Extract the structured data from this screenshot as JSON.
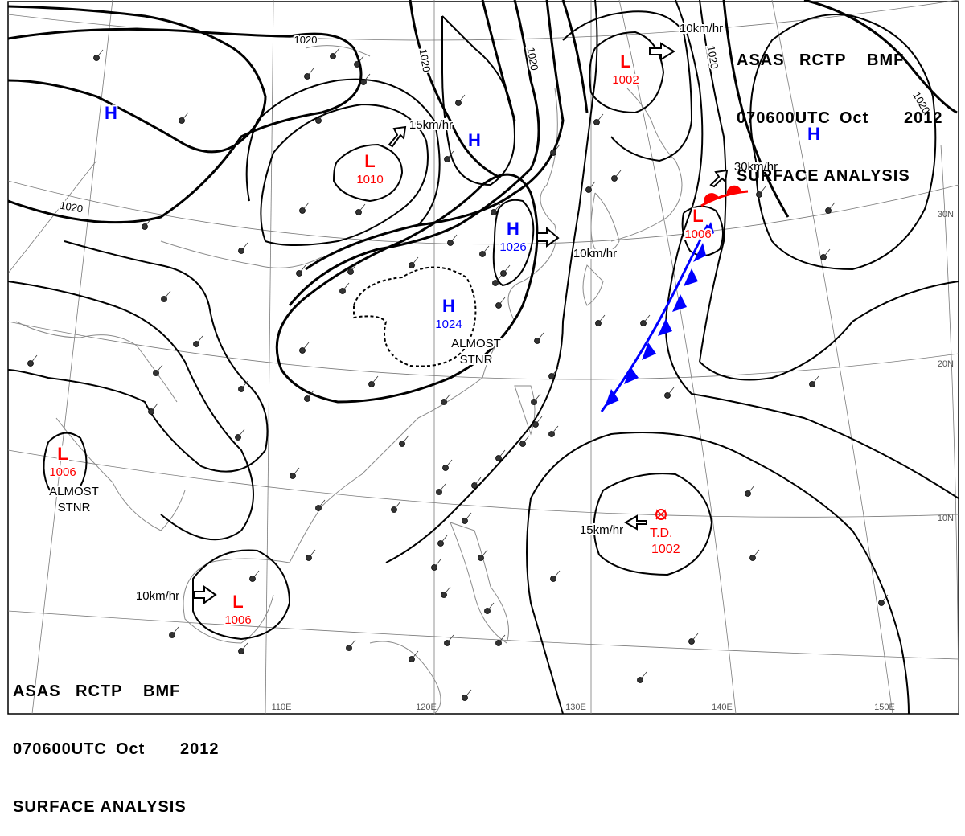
{
  "header": {
    "agency": "ASAS",
    "station": "RCTP",
    "code": "BMF",
    "time": "070600UTC",
    "month": "Oct",
    "year": "2012",
    "subtitle": "SURFACE ANALYSIS"
  },
  "pressure_centers": [
    {
      "type": "H",
      "value": ""
    },
    {
      "type": "H",
      "value": ""
    },
    {
      "type": "H",
      "value": ""
    },
    {
      "type": "H",
      "value": "1026"
    },
    {
      "type": "H",
      "value": "1024"
    },
    {
      "type": "L",
      "value": "1010"
    },
    {
      "type": "L",
      "value": "1002"
    },
    {
      "type": "L",
      "value": "1006"
    },
    {
      "type": "L",
      "value": "1006"
    },
    {
      "type": "L",
      "value": "1006"
    }
  ],
  "isobar_labels": [
    "1020",
    "1020",
    "1020",
    "1020",
    "1020",
    "1020"
  ],
  "motion_labels": [
    "15km/hr",
    "10km/hr",
    "10km/hr",
    "30km/hr",
    "15km/hr",
    "10km/hr"
  ],
  "annotations": [
    {
      "line1": "ALMOST",
      "line2": "STNR"
    },
    {
      "line1": "ALMOST",
      "line2": "STNR"
    }
  ],
  "tropical_depression": {
    "label": "T.D.",
    "value": "1002"
  },
  "longitudes": [
    "110E",
    "120E",
    "130E",
    "140E",
    "150E"
  ],
  "latitudes": [
    "30N",
    "20N",
    "10N"
  ],
  "colors": {
    "high": "#0000ff",
    "low": "#ff0000",
    "cold_front": "#0000ff",
    "warm_front": "#ff0000",
    "isobar": "#000000",
    "coast": "#888888",
    "grid": "#7a7a7a"
  }
}
